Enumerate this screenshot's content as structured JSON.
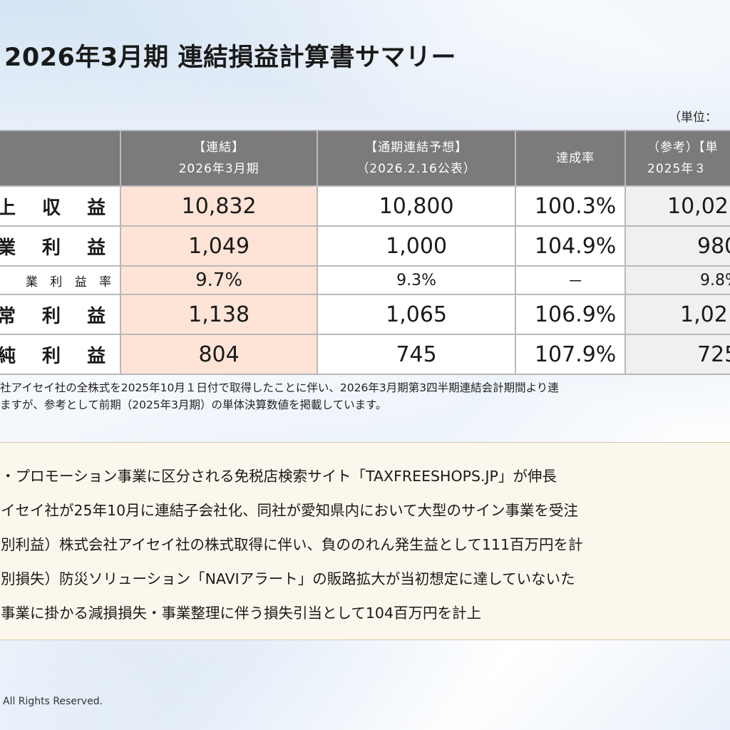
{
  "title": "2026年3月期 連結損益計算書サマリー",
  "unit": "（単位：",
  "main_table": {
    "headers": {
      "col1": {
        "line1": "【連結】",
        "line2": "2026年3月期"
      },
      "col2": {
        "line1": "【通期連結予想】",
        "line2": "（2026.2.16公表）"
      },
      "col3": "達成率"
    },
    "rows": [
      {
        "label": "上 収 益",
        "actual": "10,832",
        "forecast": "10,800",
        "rate": "100.3%"
      },
      {
        "label": "業 利 益",
        "actual": "1,049",
        "forecast": "1,000",
        "rate": "104.9%"
      },
      {
        "label": "業 利 益 率",
        "actual": "9.7%",
        "forecast": "9.3%",
        "rate": "－"
      },
      {
        "label": "常 利 益",
        "actual": "1,138",
        "forecast": "1,065",
        "rate": "106.9%"
      },
      {
        "label": "純 利 益",
        "actual": "804",
        "forecast": "745",
        "rate": "107.9%"
      }
    ]
  },
  "ref_table": {
    "header": {
      "line1": "（参考）【単",
      "line2": "2025年３"
    },
    "values": [
      "10,02",
      "980",
      "9.8%",
      "1,02",
      "725"
    ]
  },
  "note": {
    "line1": "社アイセイ社の全株式を2025年10月１日付で取得したことに伴い、2026年3月期第3四半期連結会計期間より連",
    "line2": "ますが、参考として前期（2025年3月期）の単体決算数値を掲載しています。"
  },
  "highlights": [
    "・プロモーション事業に区分される免税店検索サイト「TAXFREESHOPS.JP」が伸長",
    "イセイ社が25年10月に連結子会社化、同社が愛知県内において大型のサイン事業を受注",
    "別利益）株式会社アイセイ社の株式取得に伴い、負ののれん発生益として111百万円を計",
    "別損失）防災ソリューション「NAVIアラート」の販路拡大が当初想定に達していないた",
    "事業に掛かる減損損失・事業整理に伴う損失引当として104百万円を計上"
  ],
  "footer": "All Rights Reserved."
}
